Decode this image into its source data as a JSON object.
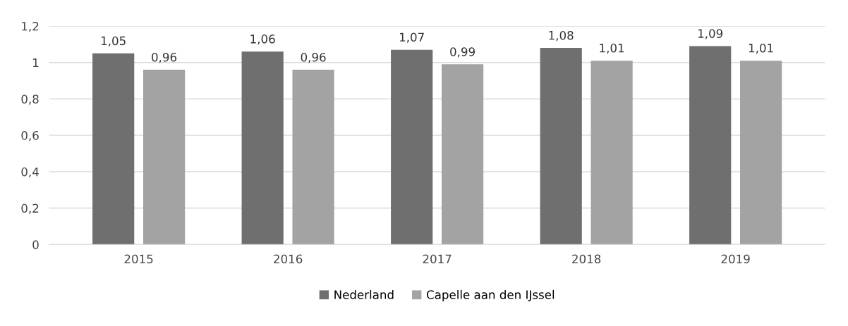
{
  "chart_data": {
    "type": "bar",
    "categories": [
      "2015",
      "2016",
      "2017",
      "2018",
      "2019"
    ],
    "series": [
      {
        "name": "Nederland",
        "color": "#6f6f6f",
        "values": [
          1.05,
          1.06,
          1.07,
          1.08,
          1.09
        ],
        "value_labels": [
          "1,05",
          "1,06",
          "1,07",
          "1,08",
          "1,09"
        ]
      },
      {
        "name": "Capelle aan den IJssel",
        "color": "#a3a3a3",
        "values": [
          0.96,
          0.96,
          0.99,
          1.01,
          1.01
        ],
        "value_labels": [
          "0,96",
          "0,96",
          "0,99",
          "1,01",
          "1,01"
        ]
      }
    ],
    "ylim": [
      0,
      1.2
    ],
    "yticks": [
      {
        "value": 0,
        "label": "0"
      },
      {
        "value": 0.2,
        "label": "0,2"
      },
      {
        "value": 0.4,
        "label": "0,4"
      },
      {
        "value": 0.6,
        "label": "0,6"
      },
      {
        "value": 0.8,
        "label": "0,8"
      },
      {
        "value": 1,
        "label": "1"
      },
      {
        "value": 1.2,
        "label": "1,2"
      }
    ],
    "grid": "y",
    "legend": "bottom"
  }
}
